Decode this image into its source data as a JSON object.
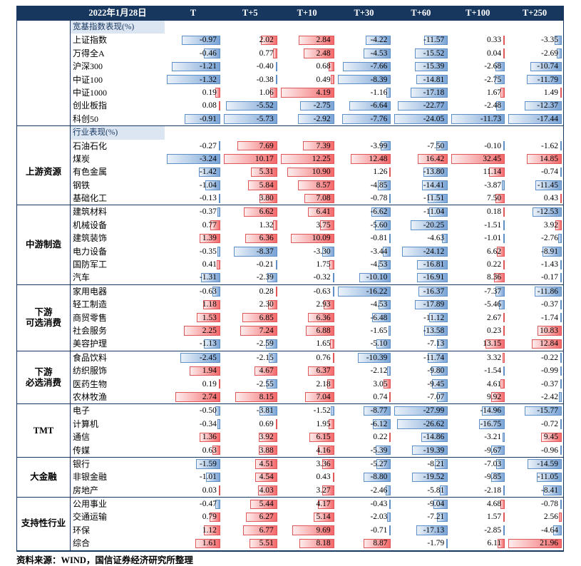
{
  "header": {
    "date_label": "2022年1月28日",
    "columns": [
      "T",
      "T+5",
      "T+10",
      "T+30",
      "T+60",
      "T+100",
      "T+250"
    ]
  },
  "source_note": "资料来源：WIND，国信证券经济研究所整理",
  "colors": {
    "header_bg": "#17375e",
    "section_label_bg": "#dce6f2",
    "positive_bar": "#f4696b",
    "negative_bar": "#7aa4d6",
    "grid_line": "#17375e"
  },
  "chart_data": {
    "type": "table",
    "columns": [
      "T",
      "T+5",
      "T+10",
      "T+30",
      "T+60",
      "T+100",
      "T+250"
    ],
    "value_unit": "%",
    "sections": [
      {
        "label": "宽基指数表现(%)",
        "groups": [
          {
            "group": "",
            "rows": [
              {
                "name": "上证指数",
                "values": [
                  -0.97,
                  2.02,
                  2.84,
                  -4.22,
                  -11.57,
                  0.33,
                  -3.35
                ]
              },
              {
                "name": "万得全A",
                "values": [
                  -0.46,
                  0.77,
                  2.48,
                  -4.53,
                  -15.52,
                  0.04,
                  -2.69
                ]
              },
              {
                "name": "沪深300",
                "values": [
                  -1.21,
                  -0.4,
                  0.68,
                  -7.66,
                  -15.39,
                  -2.68,
                  -10.74
                ]
              },
              {
                "name": "中证100",
                "values": [
                  -1.32,
                  -0.38,
                  0.49,
                  -8.39,
                  -14.81,
                  -2.75,
                  -11.79
                ]
              },
              {
                "name": "中证1000",
                "values": [
                  0.19,
                  1.06,
                  4.19,
                  -1.16,
                  -17.18,
                  1.67,
                  1.49
                ]
              },
              {
                "name": "创业板指",
                "values": [
                  0.08,
                  -5.52,
                  -2.75,
                  -6.64,
                  -22.77,
                  -2.48,
                  -12.37
                ]
              },
              {
                "name": "科创50",
                "values": [
                  -0.91,
                  -5.73,
                  -2.92,
                  -7.76,
                  -24.05,
                  -11.73,
                  -17.44
                ]
              }
            ]
          }
        ]
      },
      {
        "label": "行业表现(%)",
        "groups": [
          {
            "group": "上游资源",
            "rows": [
              {
                "name": "石油石化",
                "values": [
                  -0.27,
                  7.69,
                  7.39,
                  -3.99,
                  -7.5,
                  -0.1,
                  -1.62
                ]
              },
              {
                "name": "煤炭",
                "values": [
                  -3.24,
                  10.17,
                  12.25,
                  12.48,
                  16.42,
                  32.45,
                  14.85
                ]
              },
              {
                "name": "有色金属",
                "values": [
                  -1.42,
                  5.31,
                  10.9,
                  1.26,
                  -13.8,
                  11.14,
                  -0.74
                ]
              },
              {
                "name": "钢铁",
                "values": [
                  -1.04,
                  5.84,
                  8.57,
                  -4.85,
                  -14.41,
                  -3.87,
                  -11.45
                ]
              },
              {
                "name": "基础化工",
                "values": [
                  -0.13,
                  3.8,
                  7.08,
                  -0.78,
                  -11.51,
                  7.5,
                  0.43
                ]
              }
            ]
          },
          {
            "group": "中游制造",
            "rows": [
              {
                "name": "建筑材料",
                "values": [
                  -0.37,
                  6.62,
                  6.41,
                  -6.62,
                  -11.04,
                  0.18,
                  -12.53
                ]
              },
              {
                "name": "机械设备",
                "values": [
                  0.77,
                  1.32,
                  3.75,
                  -5.6,
                  -20.25,
                  -1.51,
                  3.92
                ]
              },
              {
                "name": "建筑装饰",
                "values": [
                  1.39,
                  6.36,
                  10.09,
                  -0.81,
                  -4.63,
                  -1.01,
                  -2.76
                ]
              },
              {
                "name": "电力设备",
                "values": [
                  -0.35,
                  -8.37,
                  -3.3,
                  -3.44,
                  -24.12,
                  6.62,
                  -8.91
                ]
              },
              {
                "name": "国防军工",
                "values": [
                  0.41,
                  -0.21,
                  1.75,
                  -4.53,
                  -16.81,
                  0.22,
                  -1.43
                ]
              },
              {
                "name": "汽车",
                "values": [
                  -1.31,
                  -2.39,
                  -0.32,
                  -10.1,
                  -16.91,
                  8.36,
                  -0.17
                ]
              }
            ]
          },
          {
            "group": "下游\n可选消费",
            "rows": [
              {
                "name": "家用电器",
                "values": [
                  -0.63,
                  0.28,
                  -0.63,
                  -16.22,
                  -16.37,
                  -7.37,
                  -11.86
                ]
              },
              {
                "name": "轻工制造",
                "values": [
                  1.18,
                  2.3,
                  2.93,
                  -4.53,
                  -17.89,
                  -5.46,
                  -0.37
                ]
              },
              {
                "name": "商贸零售",
                "values": [
                  1.53,
                  6.85,
                  6.36,
                  -6.48,
                  -11.12,
                  2.67,
                  -1.74
                ]
              },
              {
                "name": "社会服务",
                "values": [
                  2.25,
                  7.24,
                  6.88,
                  -1.65,
                  -13.58,
                  0.23,
                  10.83
                ]
              },
              {
                "name": "美容护理",
                "values": [
                  -1.13,
                  -2.59,
                  1.65,
                  -5.1,
                  -7.13,
                  13.15,
                  12.84
                ]
              }
            ]
          },
          {
            "group": "下游\n必选消费",
            "rows": [
              {
                "name": "食品饮料",
                "values": [
                  -2.45,
                  -2.15,
                  0.76,
                  -10.39,
                  -11.74,
                  3.32,
                  -0.22
                ]
              },
              {
                "name": "纺织服饰",
                "values": [
                  1.94,
                  4.67,
                  6.37,
                  -2.12,
                  -9.8,
                  -1.54,
                  -0.99
                ]
              },
              {
                "name": "医药生物",
                "values": [
                  0.19,
                  -2.55,
                  2.18,
                  3.05,
                  -9.45,
                  4.61,
                  -0.37
                ]
              },
              {
                "name": "农林牧渔",
                "values": [
                  2.74,
                  8.15,
                  7.04,
                  0.74,
                  -7.07,
                  9.92,
                  -2.42
                ]
              }
            ]
          },
          {
            "group": "TMT",
            "rows": [
              {
                "name": "电子",
                "values": [
                  -0.5,
                  -3.81,
                  -1.52,
                  -8.77,
                  -27.99,
                  -14.96,
                  -15.77
                ]
              },
              {
                "name": "计算机",
                "values": [
                  -0.34,
                  0.69,
                  1.95,
                  -6.12,
                  -26.62,
                  -16.75,
                  -0.72
                ]
              },
              {
                "name": "通信",
                "values": [
                  1.36,
                  3.92,
                  6.15,
                  0.22,
                  -14.86,
                  -3.21,
                  9.45
                ]
              },
              {
                "name": "传媒",
                "values": [
                  0.63,
                  3.88,
                  4.16,
                  -5.39,
                  -19.39,
                  -9.67,
                  -0.96
                ]
              }
            ]
          },
          {
            "group": "大金融",
            "rows": [
              {
                "name": "银行",
                "values": [
                  -1.59,
                  4.51,
                  3.36,
                  -5.27,
                  -8.21,
                  -7.03,
                  -14.59
                ]
              },
              {
                "name": "非银金融",
                "values": [
                  -1.01,
                  4.54,
                  0.43,
                  -8.8,
                  -19.52,
                  -9.85,
                  -11.05
                ]
              },
              {
                "name": "房地产",
                "values": [
                  0.03,
                  4.03,
                  3.27,
                  -2.46,
                  -5.81,
                  -2.18,
                  -8.41
                ]
              }
            ]
          },
          {
            "group": "支持性行业",
            "rows": [
              {
                "name": "公用事业",
                "values": [
                  -0.47,
                  5.44,
                  4.17,
                  -0.43,
                  -9.04,
                  4.68,
                  -0.78
                ]
              },
              {
                "name": "交通运输",
                "values": [
                  0.79,
                  6.27,
                  5.14,
                  -2.03,
                  -7.21,
                  1.57,
                  2.56
                ]
              },
              {
                "name": "环保",
                "values": [
                  1.12,
                  6.77,
                  9.69,
                  -0.71,
                  -17.13,
                  -2.85,
                  -4.64
                ]
              },
              {
                "name": "综合",
                "values": [
                  1.61,
                  5.51,
                  8.18,
                  8.87,
                  -1.79,
                  6.11,
                  21.96
                ]
              }
            ]
          }
        ]
      }
    ]
  }
}
